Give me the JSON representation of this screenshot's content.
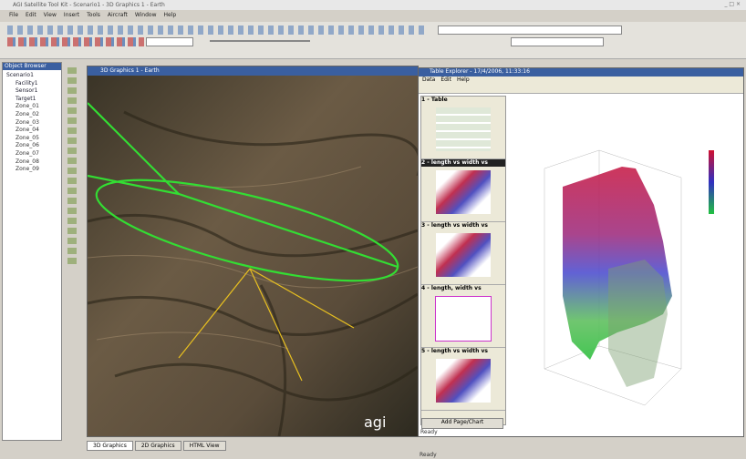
{
  "window": {
    "title": "AGI Satellite Tool Kit - Scenario1 - 3D Graphics 1 - Earth"
  },
  "menu": [
    "File",
    "Edit",
    "View",
    "Insert",
    "Tools",
    "Aircraft",
    "Window",
    "Help"
  ],
  "browser": {
    "title": "Object Browser",
    "items": [
      "Scenario1",
      "Facility1",
      "Sensor1",
      "Target1",
      "Zone_01",
      "Zone_02",
      "Zone_03",
      "Zone_04",
      "Zone_05",
      "Zone_06",
      "Zone_07",
      "Zone_08",
      "Zone_09"
    ]
  },
  "view3d": {
    "title": "3D Graphics 1 - Earth",
    "logo": "agi"
  },
  "table_explorer": {
    "title": "Table Explorer - 17/4/2006, 11:33:16",
    "menu": [
      "Data",
      "Edit",
      "Help"
    ],
    "pages": [
      "1 - Table",
      "2 - length vs width vs",
      "3 - length vs width vs",
      "4 - length, width vs",
      "5 - length vs width vs"
    ],
    "button": "Add Page/Chart",
    "status": "Ready"
  },
  "tabs": [
    "3D Graphics",
    "2D Graphics",
    "HTML View"
  ],
  "status": [
    "Ready"
  ]
}
